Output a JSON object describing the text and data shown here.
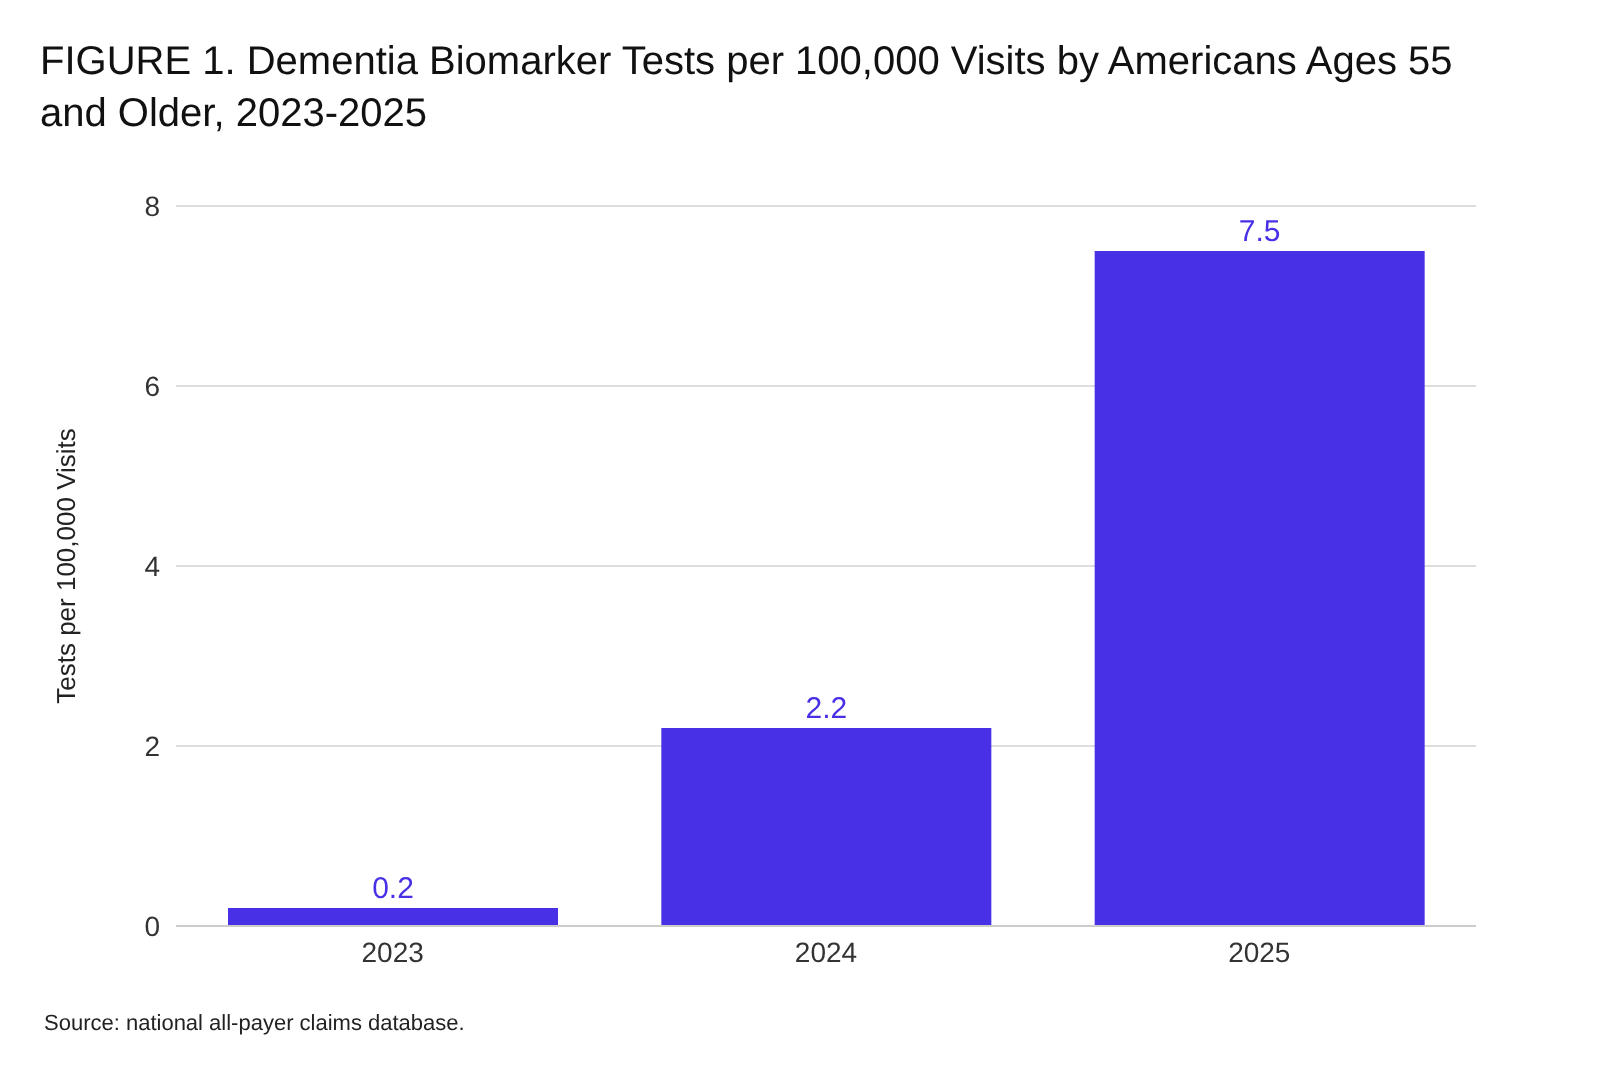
{
  "chart_data": {
    "type": "bar",
    "title": "FIGURE 1. Dementia Biomarker Tests per 100,000 Visits by Americans Ages 55 and Older, 2023-2025",
    "ylabel": "Tests per 100,000 Visits",
    "categories": [
      "2023",
      "2024",
      "2025"
    ],
    "values": [
      0.2,
      2.2,
      7.5
    ],
    "color": "#4730e6",
    "ylim": [
      0,
      8
    ],
    "yticks": [
      0,
      2,
      4,
      6,
      8
    ],
    "grid": "y",
    "data_labels": true,
    "annotations": [
      "Source: national all-payer claims database."
    ]
  }
}
